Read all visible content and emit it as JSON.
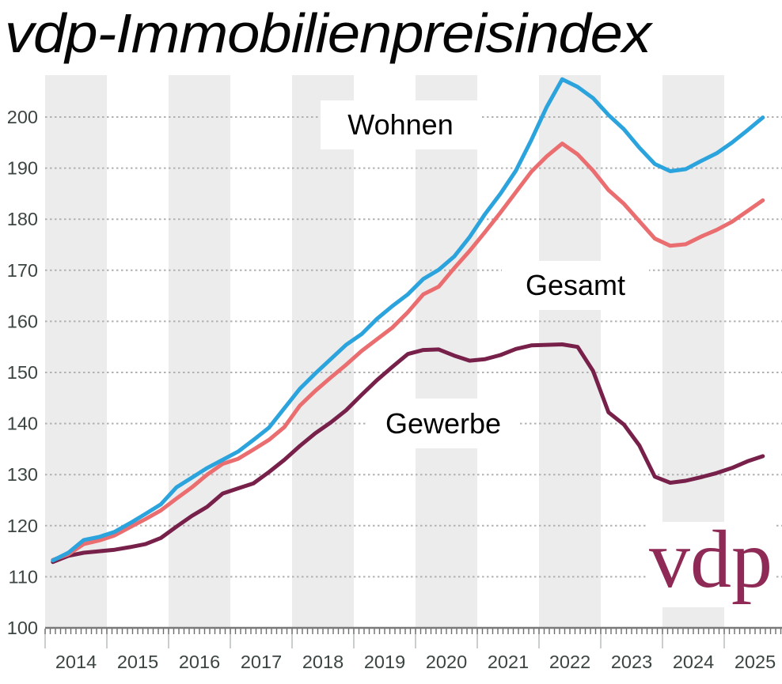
{
  "title": {
    "text": "vdp-Immobilienpreisindex"
  },
  "logo": {
    "text": "vdp",
    "color": "#8e2a55"
  },
  "labels": {
    "wohnen": "Wohnen",
    "gesamt": "Gesamt",
    "gewerbe": "Gewerbe"
  },
  "chart_data": {
    "type": "line",
    "title": "vdp-Immobilienpreisindex",
    "x_unit": "quarter",
    "x_range": [
      "2014-Q1",
      "2025-Q3"
    ],
    "years": [
      "2014",
      "2015",
      "2016",
      "2017",
      "2018",
      "2019",
      "2020",
      "2021",
      "2022",
      "2023",
      "2024",
      "2025"
    ],
    "yticks": [
      100,
      110,
      120,
      130,
      140,
      150,
      160,
      170,
      180,
      190,
      200
    ],
    "ylim": [
      100,
      208
    ],
    "grid": "dashed-horizontal",
    "shaded_year_bands": [
      "2014",
      "2016",
      "2018",
      "2020",
      "2022",
      "2024"
    ],
    "band_color": "#ececec",
    "grid_color": "#b1b1b1",
    "axis_color": "#7a7a7a",
    "tick_label_color": "#3c4444",
    "series": [
      {
        "name": "Gewerbe",
        "color": "#77204a",
        "values": [
          112.9,
          114.1,
          114.7,
          115.0,
          115.3,
          115.8,
          116.4,
          117.6,
          119.8,
          121.9,
          123.7,
          126.3,
          127.3,
          128.3,
          130.5,
          132.9,
          135.6,
          138.1,
          140.2,
          142.6,
          145.6,
          148.5,
          151.1,
          153.6,
          154.4,
          154.5,
          153.3,
          152.3,
          152.6,
          153.4,
          154.6,
          155.3,
          155.4,
          155.5,
          155.0,
          150.3,
          142.2,
          139.8,
          135.7,
          129.6,
          128.4,
          128.8,
          129.5,
          130.3,
          131.3,
          132.6,
          133.6
        ]
      },
      {
        "name": "Gesamt",
        "color": "#ea6d70",
        "values": [
          113.3,
          114.4,
          116.4,
          117.1,
          118.1,
          119.7,
          121.3,
          123.0,
          125.3,
          127.5,
          130.0,
          132.1,
          133.1,
          134.9,
          136.8,
          139.3,
          143.5,
          146.4,
          149.0,
          151.5,
          154.2,
          156.5,
          158.8,
          161.8,
          165.3,
          166.8,
          170.4,
          173.8,
          177.5,
          181.3,
          185.3,
          189.3,
          192.3,
          194.8,
          192.7,
          189.5,
          185.7,
          183.0,
          179.6,
          176.2,
          174.8,
          175.1,
          176.6,
          177.9,
          179.5,
          181.6,
          183.7
        ]
      },
      {
        "name": "Wohnen",
        "color": "#2ba3dc",
        "values": [
          113.2,
          114.7,
          117.2,
          117.8,
          118.8,
          120.5,
          122.3,
          124.2,
          127.5,
          129.4,
          131.3,
          132.9,
          134.5,
          136.8,
          139.2,
          143.0,
          146.8,
          149.8,
          152.6,
          155.4,
          157.5,
          160.5,
          163.0,
          165.3,
          168.3,
          170.1,
          172.7,
          176.5,
          181.0,
          185.0,
          189.5,
          195.5,
          202.0,
          207.4,
          205.9,
          203.7,
          200.4,
          197.6,
          194.0,
          190.8,
          189.4,
          189.8,
          191.4,
          192.9,
          195.0,
          197.4,
          199.9
        ]
      }
    ]
  }
}
